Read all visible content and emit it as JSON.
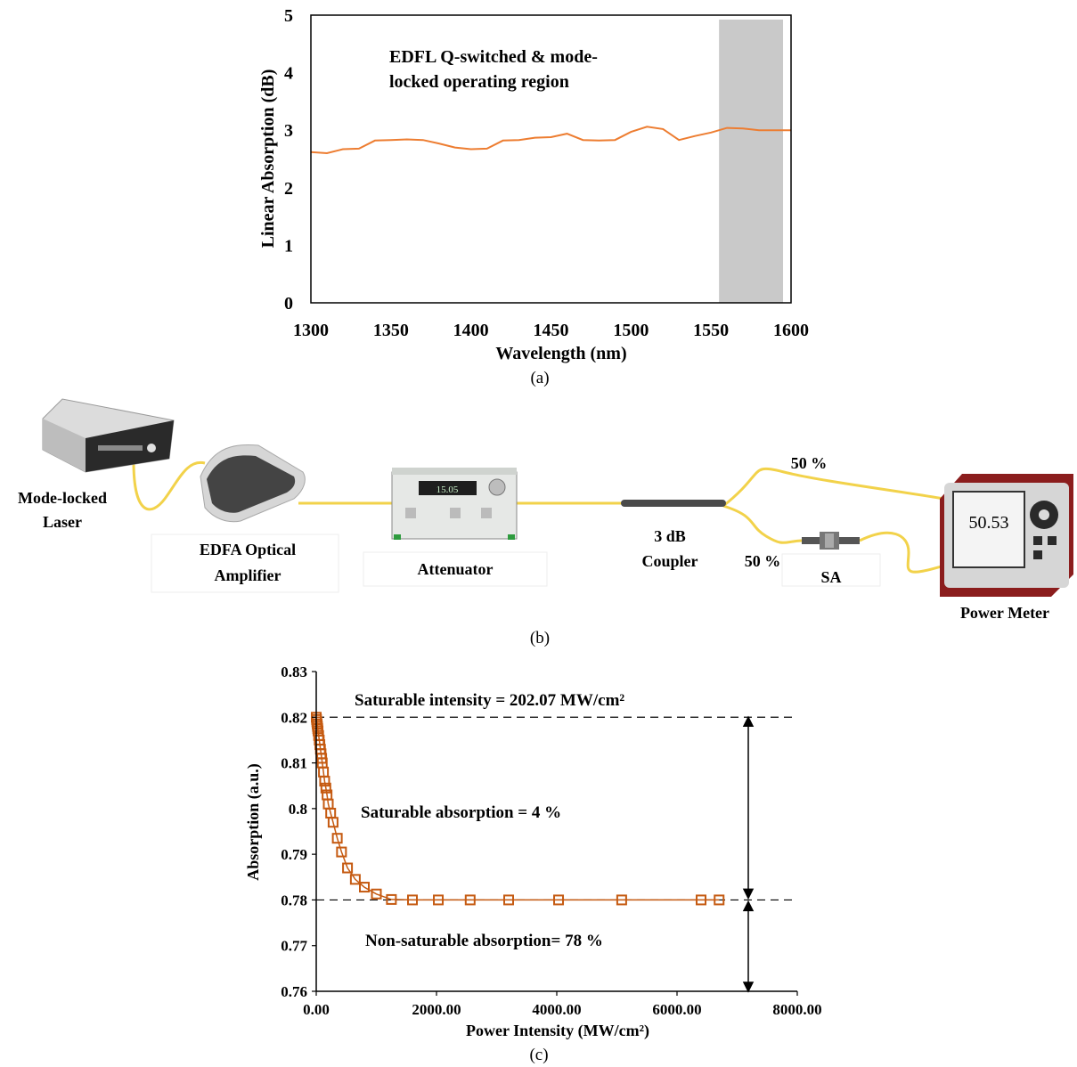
{
  "chart_data": [
    {
      "type": "line",
      "xlabel": "Wavelength (nm)",
      "ylabel": "Linear Absorption (dB)",
      "xlim": [
        1300,
        1600
      ],
      "ylim": [
        0,
        5
      ],
      "xticks": [
        "1300",
        "1350",
        "1400",
        "1450",
        "1500",
        "1550",
        "1600"
      ],
      "yticks": [
        "0",
        "1",
        "2",
        "3",
        "4",
        "5"
      ],
      "annotation": [
        "EDFL Q-switched & mode-",
        "locked operating region"
      ],
      "shaded_region": [
        1555,
        1595
      ],
      "color": "#ed7d31",
      "shade_color": "#c9c9c9",
      "caption": "(a)",
      "x": [
        1300,
        1310,
        1320,
        1330,
        1340,
        1350,
        1360,
        1370,
        1380,
        1390,
        1400,
        1410,
        1420,
        1430,
        1440,
        1450,
        1460,
        1470,
        1480,
        1490,
        1500,
        1510,
        1520,
        1530,
        1540,
        1550,
        1560,
        1570,
        1580,
        1590,
        1600
      ],
      "y": [
        2.6,
        2.62,
        2.65,
        2.7,
        2.8,
        2.85,
        2.82,
        2.85,
        2.75,
        2.72,
        2.65,
        2.7,
        2.8,
        2.85,
        2.85,
        2.9,
        2.92,
        2.85,
        2.8,
        2.85,
        2.95,
        3.08,
        3.0,
        2.85,
        2.88,
        2.98,
        3.02,
        3.05,
        2.98,
        3.02,
        2.98
      ]
    },
    {
      "type": "diagram",
      "caption": "(b)",
      "labels": {
        "laser": [
          "Mode-locked",
          "Laser"
        ],
        "edfa": [
          "EDFA Optical",
          "Amplifier"
        ],
        "attenuator": "Attenuator",
        "coupler": [
          "3 dB",
          "Coupler"
        ],
        "sa": "SA",
        "power_meter": "Power Meter",
        "split_top": "50 %",
        "split_bottom": "50 %",
        "meter_display": "50.53",
        "attenuator_display": "15.05"
      }
    },
    {
      "type": "scatter",
      "xlabel": "Power Intensity (MW/cm²)",
      "ylabel": "Absorption (a.u.)",
      "xlim": [
        0,
        8000
      ],
      "ylim": [
        0.76,
        0.83
      ],
      "xticks": [
        "0.00",
        "2000.00",
        "4000.00",
        "6000.00",
        "8000.00"
      ],
      "yticks": [
        "0.76",
        "0.77",
        "0.78",
        "0.79",
        "0.8",
        "0.81",
        "0.82",
        "0.83"
      ],
      "annotations": {
        "saturable_intensity": "Saturable intensity =  202.07 MW/cm²",
        "saturable_absorption": "Saturable absorption  = 4 %",
        "non_saturable": "Non-saturable absorption= 78 %"
      },
      "hlines": [
        0.82,
        0.78
      ],
      "color": "#c55a11",
      "caption": "(c)",
      "x": [
        0,
        5,
        10,
        15,
        20,
        25,
        30,
        40,
        50,
        60,
        70,
        80,
        90,
        100,
        120,
        140,
        160,
        180,
        200,
        240,
        280,
        350,
        420,
        520,
        650,
        800,
        1000,
        1250,
        1600,
        2030,
        2560,
        3200,
        4030,
        5080,
        6400,
        6700
      ],
      "y": [
        0.82,
        0.8195,
        0.819,
        0.8185,
        0.818,
        0.8175,
        0.817,
        0.816,
        0.815,
        0.814,
        0.813,
        0.812,
        0.811,
        0.81,
        0.808,
        0.806,
        0.8045,
        0.803,
        0.801,
        0.799,
        0.797,
        0.7935,
        0.7905,
        0.787,
        0.7845,
        0.7828,
        0.7813,
        0.7801,
        0.78,
        0.78,
        0.78,
        0.78,
        0.78,
        0.78,
        0.78,
        0.78
      ]
    }
  ]
}
